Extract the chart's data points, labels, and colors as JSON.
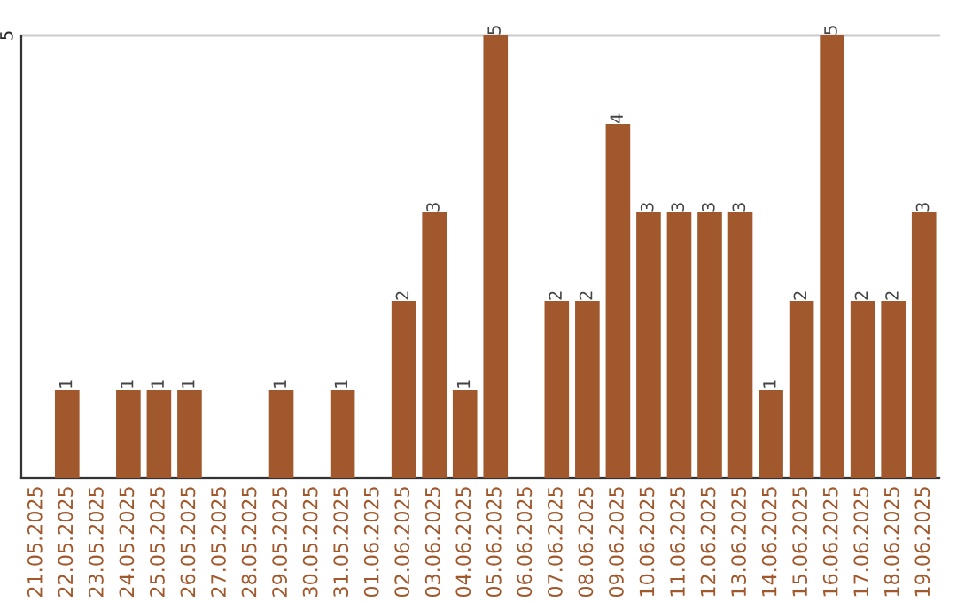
{
  "chart_data": {
    "type": "bar",
    "categories": [
      "21.05.2025",
      "22.05.2025",
      "23.05.2025",
      "24.05.2025",
      "25.05.2025",
      "26.05.2025",
      "27.05.2025",
      "28.05.2025",
      "29.05.2025",
      "30.05.2025",
      "31.05.2025",
      "01.06.2025",
      "02.06.2025",
      "03.06.2025",
      "04.06.2025",
      "05.06.2025",
      "06.06.2025",
      "07.06.2025",
      "08.06.2025",
      "09.06.2025",
      "10.06.2025",
      "11.06.2025",
      "12.06.2025",
      "13.06.2025",
      "14.06.2025",
      "15.06.2025",
      "16.06.2025",
      "17.06.2025",
      "18.06.2025",
      "19.06.2025"
    ],
    "values": [
      0,
      1,
      0,
      1,
      1,
      1,
      0,
      0,
      1,
      0,
      1,
      0,
      2,
      3,
      1,
      5,
      0,
      2,
      2,
      4,
      3,
      3,
      3,
      3,
      1,
      2,
      5,
      2,
      2,
      3
    ],
    "value_labels": [
      null,
      "1",
      null,
      "1",
      "1",
      "1",
      null,
      null,
      "1",
      null,
      "1",
      null,
      "2",
      "3",
      "1",
      "5",
      null,
      "2",
      "2",
      "4",
      "3",
      "3",
      "3",
      "3",
      "1",
      "2",
      "5",
      "2",
      "2",
      "3"
    ],
    "color": "#a0582c",
    "ylim": [
      0,
      5
    ],
    "yticks": [
      {
        "value": 0,
        "label": null
      },
      5
    ],
    "grid": "y"
  }
}
